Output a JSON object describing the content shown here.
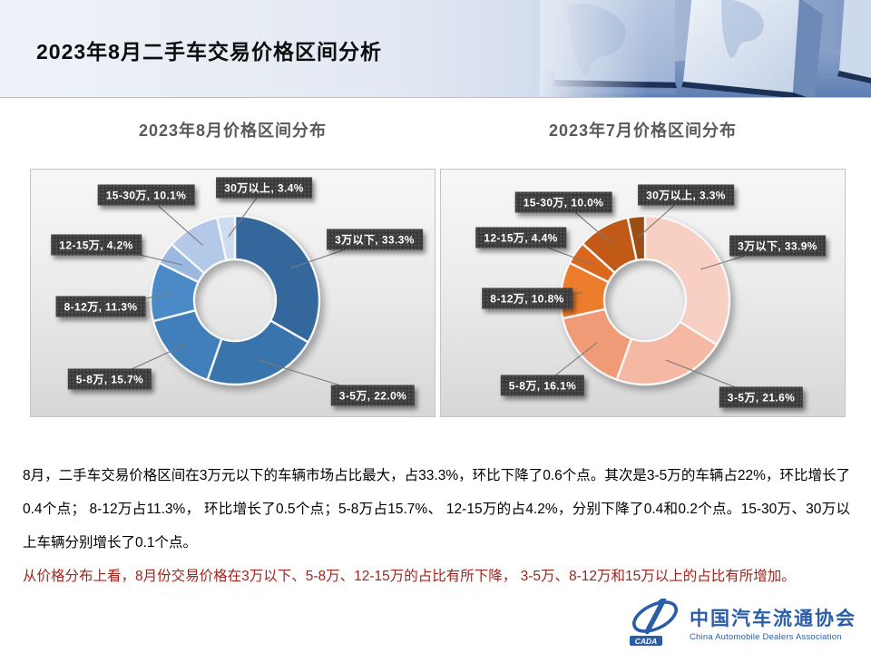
{
  "header": {
    "title": "2023年8月二手车交易价格区间分析"
  },
  "chart_data": [
    {
      "type": "pie",
      "subtype": "donut",
      "title": "2023年8月价格区间分布",
      "categories": [
        "3万以下",
        "3-5万",
        "5-8万",
        "8-12万",
        "12-15万",
        "15-30万",
        "30万以上"
      ],
      "values": [
        33.3,
        22.0,
        15.7,
        11.3,
        4.2,
        10.1,
        3.4
      ],
      "unit": "%",
      "colors": [
        "#34689C",
        "#3A74AC",
        "#417FBA",
        "#4A8AC6",
        "#9BB9DE",
        "#B4C9E7",
        "#CFDCF0"
      ],
      "label_box_color": "#3A3A3A",
      "leader_line_color": "#7A7A7A",
      "legend": "none",
      "labels_on": "outside-callouts"
    },
    {
      "type": "pie",
      "subtype": "donut",
      "title": "2023年7月价格区间分布",
      "categories": [
        "3万以下",
        "3-5万",
        "5-8万",
        "8-12万",
        "12-15万",
        "15-30万",
        "30万以上"
      ],
      "values": [
        33.9,
        21.6,
        16.1,
        10.8,
        4.4,
        10.0,
        3.3
      ],
      "unit": "%",
      "colors": [
        "#F7CFC3",
        "#F5B8A3",
        "#F09B77",
        "#EC7D2D",
        "#DB671F",
        "#C05A16",
        "#9C4D13"
      ],
      "label_box_color": "#3A3A3A",
      "leader_line_color": "#7A7A7A",
      "legend": "none",
      "labels_on": "outside-callouts"
    }
  ],
  "body": {
    "paragraph1": "8月，二手车交易价格区间在3万元以下的车辆市场占比最大，占33.3%，环比下降了0.6个点。其次是3-5万的车辆占22%，环比增长了0.4个点； 8-12万占11.3%， 环比增长了0.5个点；5-8万占15.7%、 12-15万的占4.2%，分别下降了0.4和0.2个点。15-30万、30万以上车辆分别增长了0.1个点。",
    "paragraph2": "从价格分布上看，8月份交易价格在3万以下、5-8万、12-15万的占比有所下降， 3-5万、8-12万和15万以上的占比有所增加。",
    "paragraph2_color": "#A0241C"
  },
  "logo": {
    "cn": "中国汽车流通协会",
    "en": "China Automobile Dealers Association",
    "badge": "CADA",
    "color": "#2A5DA8"
  }
}
